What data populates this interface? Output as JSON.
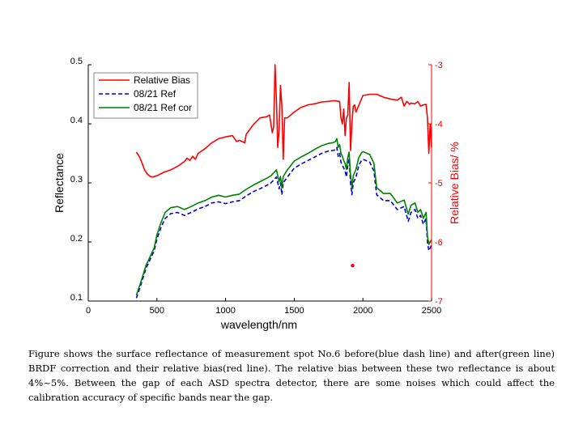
{
  "chart_data": {
    "type": "line",
    "xlabel": "wavelength/nm",
    "ylabel": "Reflectance",
    "y2label": "Relative Bias/ %",
    "xlim": [
      0,
      2500
    ],
    "ylim": [
      0.1,
      0.5
    ],
    "y2lim": [
      -7,
      -3
    ],
    "x_ticks": [
      0,
      500,
      1000,
      1500,
      2000,
      2500
    ],
    "x_tick_labels": [
      "0",
      "500",
      "1000",
      "1500",
      "2000",
      "2500"
    ],
    "y_ticks": [
      0.1,
      0.2,
      0.3,
      0.4,
      0.5
    ],
    "y_tick_labels": [
      "0.1",
      "0.2",
      "0.3",
      "0.4",
      "0.5"
    ],
    "y2_ticks": [
      -7,
      -6,
      -5,
      -4,
      -3
    ],
    "y2_tick_labels": [
      "-7",
      "-6",
      "-5",
      "-4",
      "-3"
    ],
    "legend_position": "top-left",
    "series": [
      {
        "name": "Relative Bias",
        "axis": "right",
        "color": "#ff0000",
        "style": "solid",
        "x": [
          350,
          370,
          390,
          410,
          430,
          450,
          470,
          500,
          550,
          600,
          650,
          700,
          720,
          740,
          760,
          780,
          800,
          850,
          900,
          950,
          1000,
          1050,
          1080,
          1100,
          1120,
          1140,
          1150,
          1200,
          1250,
          1300,
          1320,
          1340,
          1350,
          1360,
          1370,
          1380,
          1390,
          1400,
          1410,
          1420,
          1430,
          1450,
          1500,
          1550,
          1600,
          1650,
          1700,
          1750,
          1780,
          1800,
          1820,
          1830,
          1840,
          1850,
          1860,
          1870,
          1880,
          1890,
          1900,
          1910,
          1920,
          1930,
          1940,
          1950,
          2000,
          2050,
          2100,
          2150,
          2200,
          2250,
          2280,
          2300,
          2320,
          2340,
          2350,
          2380,
          2400,
          2420,
          2440,
          2460,
          2470,
          2480,
          2490,
          2500
        ],
        "y": [
          -4.48,
          -4.55,
          -4.65,
          -4.78,
          -4.85,
          -4.89,
          -4.9,
          -4.88,
          -4.82,
          -4.78,
          -4.72,
          -4.64,
          -4.58,
          -4.62,
          -4.55,
          -4.6,
          -4.5,
          -4.42,
          -4.32,
          -4.25,
          -4.22,
          -4.2,
          -4.3,
          -4.28,
          -4.3,
          -4.32,
          -4.18,
          -4.02,
          -3.9,
          -3.88,
          -3.85,
          -4.15,
          -4.05,
          -3.0,
          -3.6,
          -4.4,
          -4.1,
          -3.35,
          -3.7,
          -4.6,
          -3.9,
          -3.9,
          -3.8,
          -3.72,
          -3.68,
          -3.66,
          -3.63,
          -3.62,
          -3.61,
          -3.61,
          -3.62,
          -3.62,
          -3.9,
          -4.0,
          -3.75,
          -4.2,
          -3.9,
          -3.85,
          -3.3,
          -4.45,
          -4.0,
          -3.7,
          -3.68,
          -3.8,
          -3.52,
          -3.5,
          -3.5,
          -3.55,
          -3.58,
          -3.6,
          -3.55,
          -3.7,
          -3.62,
          -3.67,
          -3.65,
          -3.66,
          -3.62,
          -3.7,
          -3.68,
          -3.67,
          -3.9,
          -4.5,
          -4.0,
          -4.4
        ]
      },
      {
        "name": "08/21 Ref",
        "axis": "left",
        "color": "#0000cc",
        "style": "dash",
        "x": [
          350,
          380,
          400,
          420,
          450,
          480,
          500,
          530,
          560,
          600,
          650,
          700,
          750,
          800,
          850,
          900,
          950,
          1000,
          1050,
          1100,
          1150,
          1200,
          1250,
          1300,
          1330,
          1350,
          1370,
          1390,
          1400,
          1410,
          1420,
          1450,
          1500,
          1550,
          1600,
          1650,
          1700,
          1750,
          1780,
          1800,
          1810,
          1820,
          1830,
          1840,
          1850,
          1860,
          1870,
          1880,
          1890,
          1900,
          1910,
          1920,
          1930,
          1950,
          1970,
          1990,
          2000,
          2050,
          2080,
          2100,
          2150,
          2200,
          2250,
          2300,
          2330,
          2350,
          2380,
          2400,
          2420,
          2440,
          2460,
          2470,
          2480,
          2490,
          2500
        ],
        "y": [
          0.105,
          0.125,
          0.14,
          0.155,
          0.17,
          0.185,
          0.205,
          0.225,
          0.24,
          0.248,
          0.25,
          0.245,
          0.25,
          0.256,
          0.26,
          0.266,
          0.268,
          0.265,
          0.268,
          0.27,
          0.278,
          0.285,
          0.29,
          0.296,
          0.3,
          0.305,
          0.31,
          0.29,
          0.3,
          0.28,
          0.3,
          0.31,
          0.325,
          0.332,
          0.338,
          0.344,
          0.35,
          0.354,
          0.355,
          0.356,
          0.36,
          0.345,
          0.35,
          0.335,
          0.33,
          0.325,
          0.32,
          0.31,
          0.33,
          0.34,
          0.3,
          0.28,
          0.3,
          0.31,
          0.33,
          0.338,
          0.34,
          0.335,
          0.32,
          0.28,
          0.27,
          0.27,
          0.255,
          0.26,
          0.235,
          0.25,
          0.255,
          0.24,
          0.245,
          0.23,
          0.24,
          0.2,
          0.185,
          0.19,
          0.195
        ]
      },
      {
        "name": "08/21 Ref cor",
        "axis": "left",
        "color": "#008000",
        "style": "solid",
        "x": [
          350,
          380,
          400,
          420,
          450,
          480,
          500,
          530,
          560,
          600,
          650,
          700,
          750,
          800,
          850,
          900,
          950,
          1000,
          1050,
          1100,
          1150,
          1200,
          1250,
          1300,
          1330,
          1350,
          1370,
          1390,
          1400,
          1410,
          1420,
          1450,
          1500,
          1550,
          1600,
          1650,
          1700,
          1750,
          1780,
          1800,
          1810,
          1820,
          1830,
          1840,
          1850,
          1860,
          1870,
          1880,
          1890,
          1900,
          1910,
          1920,
          1930,
          1950,
          1970,
          1990,
          2000,
          2050,
          2080,
          2100,
          2150,
          2200,
          2250,
          2300,
          2330,
          2350,
          2380,
          2400,
          2420,
          2440,
          2460,
          2470,
          2480,
          2490,
          2500
        ],
        "y": [
          0.11,
          0.13,
          0.145,
          0.16,
          0.175,
          0.19,
          0.212,
          0.233,
          0.25,
          0.258,
          0.26,
          0.255,
          0.26,
          0.266,
          0.27,
          0.276,
          0.279,
          0.276,
          0.279,
          0.281,
          0.289,
          0.296,
          0.302,
          0.308,
          0.312,
          0.317,
          0.322,
          0.302,
          0.311,
          0.292,
          0.311,
          0.322,
          0.337,
          0.344,
          0.35,
          0.357,
          0.363,
          0.367,
          0.368,
          0.37,
          0.375,
          0.36,
          0.365,
          0.35,
          0.345,
          0.338,
          0.333,
          0.323,
          0.343,
          0.352,
          0.313,
          0.293,
          0.312,
          0.323,
          0.343,
          0.351,
          0.353,
          0.348,
          0.333,
          0.292,
          0.282,
          0.282,
          0.266,
          0.271,
          0.247,
          0.262,
          0.266,
          0.25,
          0.255,
          0.24,
          0.25,
          0.21,
          0.196,
          0.2,
          0.204
        ]
      }
    ],
    "outlier_points": [
      {
        "series": "Relative Bias",
        "axis": "right",
        "x": 1925,
        "y": -6.4
      }
    ]
  },
  "caption": "Figure shows the surface reflectance of measurement spot No.6 before(blue dash line) and after(green line) BRDF correction and their relative bias(red line). The relative bias between these two reflectance is about 4%~5%. Between the gap of each ASD spectra detector, there are some noises which could affect the calibration accuracy of specific bands near the gap."
}
